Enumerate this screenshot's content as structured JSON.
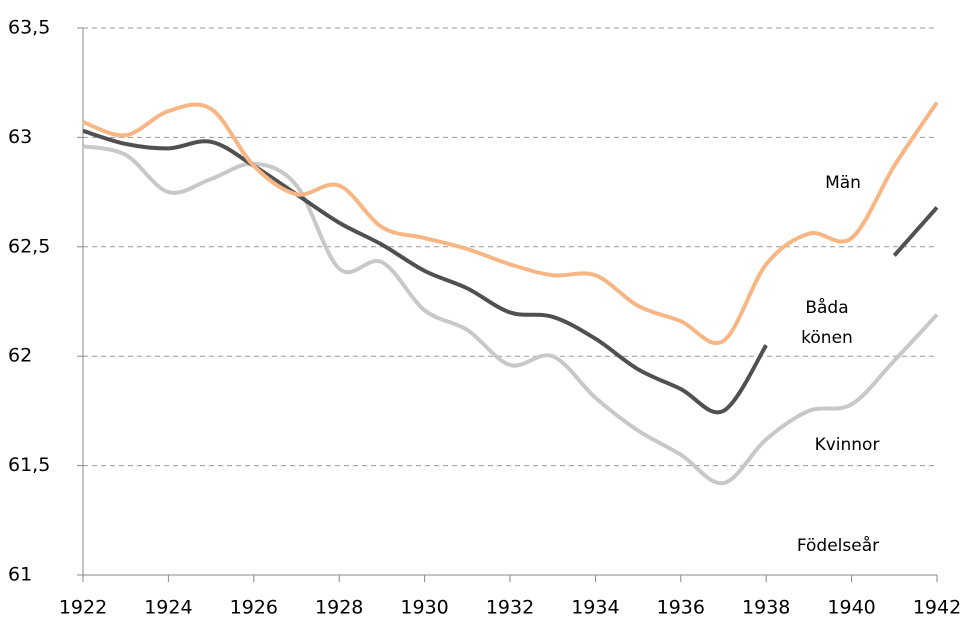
{
  "chart_data": {
    "type": "line",
    "x": [
      1922,
      1923,
      1924,
      1925,
      1926,
      1927,
      1928,
      1929,
      1930,
      1931,
      1932,
      1933,
      1934,
      1935,
      1936,
      1937,
      1938,
      1939,
      1940,
      1941,
      1942
    ],
    "series": [
      {
        "name": "Män",
        "color": "#f7b684",
        "values": [
          63.07,
          63.01,
          63.12,
          63.13,
          62.87,
          62.74,
          62.78,
          62.59,
          62.54,
          62.49,
          62.42,
          62.37,
          62.37,
          62.23,
          62.16,
          62.07,
          62.42,
          62.56,
          62.54,
          62.87,
          63.16
        ]
      },
      {
        "name": "Båda könen",
        "color": "#505050",
        "values": [
          63.03,
          62.97,
          62.95,
          62.98,
          62.87,
          62.74,
          62.61,
          62.51,
          62.39,
          62.31,
          62.2,
          62.18,
          62.08,
          61.94,
          61.85,
          61.75,
          62.05,
          null,
          null,
          62.46,
          62.68
        ]
      },
      {
        "name": "Kvinnor",
        "color": "#c8c8c8",
        "values": [
          62.96,
          62.92,
          62.75,
          62.81,
          62.88,
          62.78,
          62.4,
          62.43,
          62.21,
          62.12,
          61.96,
          62.0,
          61.81,
          61.66,
          61.55,
          61.42,
          61.62,
          61.75,
          61.78,
          61.98,
          62.19
        ]
      }
    ],
    "annotations": [
      "Män",
      "Båda",
      "könen",
      "Kvinnor",
      "Födelseår"
    ],
    "xlim": [
      1922,
      1942
    ],
    "xticks": [
      1922,
      1924,
      1926,
      1928,
      1930,
      1932,
      1934,
      1936,
      1938,
      1940,
      1942
    ],
    "ylim": [
      61,
      63.5
    ],
    "yticks": [
      61,
      {
        "value": 61.5,
        "label": "61,5"
      },
      62,
      {
        "value": 62.5,
        "label": "62,5"
      },
      63,
      {
        "value": 63.5,
        "label": "63,5"
      }
    ],
    "grid": true
  }
}
